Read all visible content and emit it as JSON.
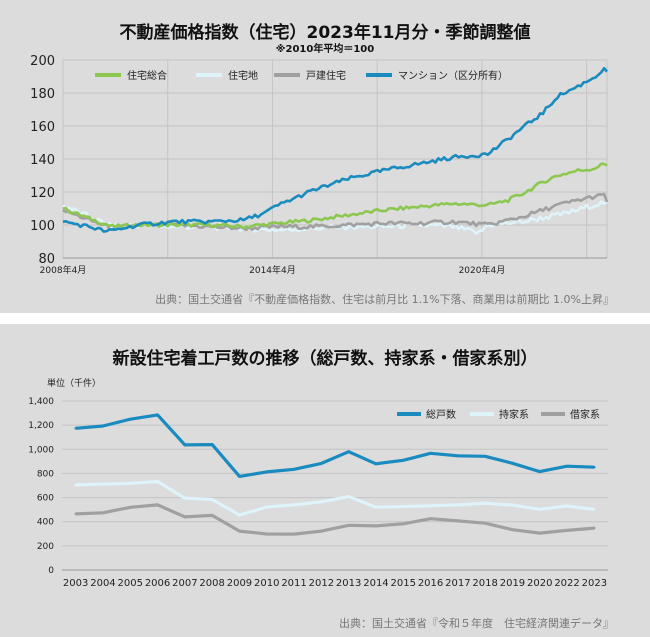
{
  "colors": {
    "panel_bg": "#dcdcdc",
    "grid": "#c4c4c4",
    "blue": "#1a8bbf",
    "green": "#8cc850",
    "lightblue": "#dff3fb",
    "gray": "#a0a0a0"
  },
  "chart1": {
    "title": "不動産価格指数（住宅）2023年11月分・季節調整値",
    "subtitle": "※2010年平均＝100",
    "source": "出典：国土交通省『不動産価格指数、住宅は前月比 1.1%下落、商業用は前期比 1.0%上昇』"
  },
  "chart2": {
    "title": "新設住宅着工戸数の推移（総戸数、持家系・借家系別）",
    "unit_label": "単位（千件）",
    "source": "出典：国土交通省『令和５年度　住宅経済関連データ』"
  },
  "chart_data": [
    {
      "type": "line",
      "title": "不動産価格指数（住宅）2023年11月分・季節調整値",
      "subtitle": "※2010年平均＝100",
      "ylim": [
        80,
        200
      ],
      "yticks": [
        80,
        100,
        120,
        140,
        160,
        180,
        200
      ],
      "x_range": [
        "2008-04",
        "2023-11"
      ],
      "xtick_labels": [
        {
          "label": "2008年4月",
          "date": "2008-04"
        },
        {
          "label": "2014年4月",
          "date": "2014-04"
        },
        {
          "label": "2020年4月",
          "date": "2020-04"
        }
      ],
      "grid": true,
      "legend": "top",
      "series": [
        {
          "name": "住宅総合",
          "color": "#8cc850",
          "points": [
            [
              "2008-04",
              110
            ],
            [
              "2009-01",
              104
            ],
            [
              "2009-09",
              99
            ],
            [
              "2010-06",
              100
            ],
            [
              "2011-06",
              100
            ],
            [
              "2012-06",
              100
            ],
            [
              "2013-06",
              99
            ],
            [
              "2014-06",
              101
            ],
            [
              "2015-06",
              103
            ],
            [
              "2016-06",
              106
            ],
            [
              "2017-06",
              109
            ],
            [
              "2018-06",
              111
            ],
            [
              "2019-06",
              113
            ],
            [
              "2020-06",
              112
            ],
            [
              "2021-01",
              115
            ],
            [
              "2021-06",
              119
            ],
            [
              "2022-01",
              126
            ],
            [
              "2022-06",
              130
            ],
            [
              "2023-01",
              133
            ],
            [
              "2023-06",
              134
            ],
            [
              "2023-10",
              137
            ],
            [
              "2023-11",
              136
            ]
          ]
        },
        {
          "name": "住宅地",
          "color": "#dff3fb",
          "points": [
            [
              "2008-04",
              112
            ],
            [
              "2009-01",
              105
            ],
            [
              "2009-09",
              99
            ],
            [
              "2010-06",
              100
            ],
            [
              "2011-06",
              99
            ],
            [
              "2012-06",
              99
            ],
            [
              "2013-06",
              98
            ],
            [
              "2014-06",
              97
            ],
            [
              "2015-06",
              98
            ],
            [
              "2016-06",
              99
            ],
            [
              "2017-06",
              99
            ],
            [
              "2018-06",
              100
            ],
            [
              "2019-06",
              99
            ],
            [
              "2020-03",
              95
            ],
            [
              "2020-06",
              100
            ],
            [
              "2021-06",
              102
            ],
            [
              "2022-06",
              106
            ],
            [
              "2023-01",
              109
            ],
            [
              "2023-06",
              112
            ],
            [
              "2023-11",
              114
            ]
          ]
        },
        {
          "name": "戸建住宅",
          "color": "#a0a0a0",
          "points": [
            [
              "2008-04",
              109
            ],
            [
              "2009-01",
              103
            ],
            [
              "2009-09",
              98
            ],
            [
              "2010-06",
              100
            ],
            [
              "2011-06",
              100
            ],
            [
              "2012-06",
              99
            ],
            [
              "2013-06",
              98
            ],
            [
              "2014-06",
              99
            ],
            [
              "2015-06",
              99
            ],
            [
              "2016-06",
              100
            ],
            [
              "2017-06",
              101
            ],
            [
              "2018-06",
              101
            ],
            [
              "2019-06",
              102
            ],
            [
              "2020-06",
              100
            ],
            [
              "2021-06",
              105
            ],
            [
              "2022-06",
              112
            ],
            [
              "2023-01",
              115
            ],
            [
              "2023-06",
              117
            ],
            [
              "2023-10",
              118
            ],
            [
              "2023-11",
              114
            ]
          ]
        },
        {
          "name": "マンション（区分所有）",
          "color": "#1a8bbf",
          "points": [
            [
              "2008-04",
              102
            ],
            [
              "2009-01",
              99
            ],
            [
              "2009-07",
              96
            ],
            [
              "2010-06",
              100
            ],
            [
              "2011-06",
              102
            ],
            [
              "2012-06",
              102
            ],
            [
              "2013-06",
              103
            ],
            [
              "2014-01",
              107
            ],
            [
              "2014-06",
              112
            ],
            [
              "2015-06",
              121
            ],
            [
              "2016-06",
              128
            ],
            [
              "2017-06",
              133
            ],
            [
              "2018-06",
              137
            ],
            [
              "2019-06",
              141
            ],
            [
              "2020-06",
              143
            ],
            [
              "2021-01",
              152
            ],
            [
              "2021-06",
              159
            ],
            [
              "2022-01",
              168
            ],
            [
              "2022-06",
              178
            ],
            [
              "2023-01",
              184
            ],
            [
              "2023-06",
              189
            ],
            [
              "2023-10",
              194
            ],
            [
              "2023-11",
              193
            ]
          ]
        }
      ]
    },
    {
      "type": "line",
      "title": "新設住宅着工戸数の推移（総戸数、持家系・借家系別）",
      "ylabel": "単位（千件）",
      "ylim": [
        0,
        1400
      ],
      "yticks": [
        "0",
        "200",
        "400",
        "600",
        "800",
        "1,000",
        "1,200",
        "1,400"
      ],
      "categories": [
        "2003",
        "2004",
        "2005",
        "2006",
        "2007",
        "2008",
        "2009",
        "2010",
        "2011",
        "2012",
        "2013",
        "2014",
        "2015",
        "2016",
        "2017",
        "2018",
        "2019",
        "2020",
        "2022",
        "2023"
      ],
      "grid": true,
      "legend": "top-right",
      "series": [
        {
          "name": "総戸数",
          "color": "#1a8bbf",
          "values": [
            1174,
            1193,
            1249,
            1285,
            1036,
            1039,
            775,
            813,
            834,
            883,
            980,
            880,
            909,
            967,
            946,
            942,
            884,
            815,
            860,
            852
          ]
        },
        {
          "name": "持家系",
          "color": "#dff3fb",
          "values": [
            705,
            712,
            718,
            733,
            595,
            585,
            455,
            522,
            540,
            565,
            608,
            520,
            526,
            532,
            540,
            553,
            538,
            503,
            530,
            502
          ]
        },
        {
          "name": "借家系",
          "color": "#a0a0a0",
          "values": [
            465,
            474,
            519,
            539,
            440,
            452,
            322,
            298,
            297,
            322,
            370,
            365,
            383,
            425,
            407,
            388,
            334,
            306,
            328,
            347
          ]
        }
      ]
    }
  ]
}
